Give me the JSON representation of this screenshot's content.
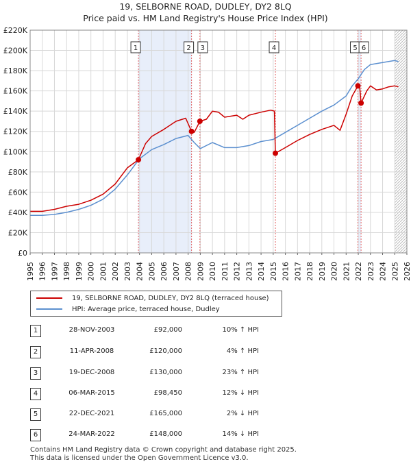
{
  "header": {
    "line1": "19, SELBORNE ROAD, DUDLEY, DY2 8LQ",
    "line2": "Price paid vs. HM Land Registry's House Price Index (HPI)"
  },
  "legend": {
    "property": "19, SELBORNE ROAD, DUDLEY, DY2 8LQ (terraced house)",
    "hpi": "HPI: Average price, terraced house, Dudley"
  },
  "colors": {
    "property": "#cc0000",
    "hpi": "#5b8fcf",
    "shade": "#e8eefa",
    "grid": "#d8d8d8",
    "vline": "#e06060"
  },
  "transactions": [
    {
      "num": "1",
      "date": "28-NOV-2003",
      "price": "£92,000",
      "hpi": "10% ↑ HPI"
    },
    {
      "num": "2",
      "date": "11-APR-2008",
      "price": "£120,000",
      "hpi": "4% ↑ HPI"
    },
    {
      "num": "3",
      "date": "19-DEC-2008",
      "price": "£130,000",
      "hpi": "23% ↑ HPI"
    },
    {
      "num": "4",
      "date": "06-MAR-2015",
      "price": "£98,450",
      "hpi": "12% ↓ HPI"
    },
    {
      "num": "5",
      "date": "22-DEC-2021",
      "price": "£165,000",
      "hpi": "2% ↓ HPI"
    },
    {
      "num": "6",
      "date": "24-MAR-2022",
      "price": "£148,000",
      "hpi": "14% ↓ HPI"
    }
  ],
  "footer": {
    "line1": "Contains HM Land Registry data © Crown copyright and database right 2025.",
    "line2": "This data is licensed under the Open Government Licence v3.0."
  },
  "chart_data": {
    "type": "line",
    "title": "19, SELBORNE ROAD, DUDLEY, DY2 8LQ — Price paid vs. HM Land Registry's House Price Index (HPI)",
    "xlim": [
      1995,
      2026
    ],
    "ylim": [
      0,
      220000
    ],
    "x_ticks": [
      "1995",
      "1996",
      "1997",
      "1998",
      "1999",
      "2000",
      "2001",
      "2002",
      "2003",
      "2004",
      "2005",
      "2006",
      "2007",
      "2008",
      "2009",
      "2010",
      "2011",
      "2012",
      "2013",
      "2014",
      "2015",
      "2016",
      "2017",
      "2018",
      "2019",
      "2020",
      "2021",
      "2022",
      "2023",
      "2024",
      "2025",
      "2026"
    ],
    "y_ticks": [
      {
        "value": 0,
        "label": "£0"
      },
      {
        "value": 20000,
        "label": "£20K"
      },
      {
        "value": 40000,
        "label": "£40K"
      },
      {
        "value": 60000,
        "label": "£60K"
      },
      {
        "value": 80000,
        "label": "£80K"
      },
      {
        "value": 100000,
        "label": "£100K"
      },
      {
        "value": 120000,
        "label": "£120K"
      },
      {
        "value": 140000,
        "label": "£140K"
      },
      {
        "value": 160000,
        "label": "£160K"
      },
      {
        "value": 180000,
        "label": "£180K"
      },
      {
        "value": 200000,
        "label": "£200K"
      },
      {
        "value": 220000,
        "label": "£220K"
      }
    ],
    "shaded_ranges": [
      [
        2003.91,
        2008.28
      ],
      [
        2021.97,
        2022.23
      ]
    ],
    "hatched_from": 2025.0,
    "sales": [
      {
        "label": "1",
        "x": 2003.91,
        "y": 92000
      },
      {
        "label": "2",
        "x": 2008.28,
        "y": 120000
      },
      {
        "label": "3",
        "x": 2008.97,
        "y": 130000
      },
      {
        "label": "4",
        "x": 2015.18,
        "y": 98450
      },
      {
        "label": "5",
        "x": 2021.97,
        "y": 165000
      },
      {
        "label": "6",
        "x": 2022.23,
        "y": 148000
      }
    ],
    "series": [
      {
        "name": "19, SELBORNE ROAD, DUDLEY, DY2 8LQ (terraced house)",
        "x": [
          1995,
          1996,
          1997,
          1998,
          1999,
          2000,
          2001,
          2002,
          2003,
          2003.91,
          2004.5,
          2005,
          2006,
          2007,
          2007.8,
          2008.28,
          2008.5,
          2008.97,
          2009.5,
          2010,
          2010.5,
          2011,
          2012,
          2012.5,
          2013,
          2014,
          2014.8,
          2015.1,
          2015.18,
          2016,
          2017,
          2018,
          2019,
          2020,
          2020.5,
          2021,
          2021.5,
          2021.97,
          2022.1,
          2022.23,
          2022.7,
          2023,
          2023.5,
          2024,
          2024.5,
          2025,
          2025.3
        ],
        "values": [
          41000,
          41000,
          43000,
          46000,
          48000,
          52000,
          58000,
          68000,
          84000,
          92000,
          108000,
          115000,
          122000,
          130000,
          133000,
          120000,
          119000,
          130000,
          132000,
          140000,
          139000,
          134000,
          136000,
          132000,
          136000,
          139000,
          141000,
          140000,
          98450,
          104000,
          111000,
          117000,
          122000,
          126000,
          121000,
          137000,
          155000,
          165000,
          166000,
          148000,
          160000,
          165000,
          161000,
          162000,
          164000,
          165000,
          164000
        ]
      },
      {
        "name": "HPI: Average price, terraced house, Dudley",
        "x": [
          1995,
          1996,
          1997,
          1998,
          1999,
          2000,
          2001,
          2002,
          2003,
          2004,
          2005,
          2006,
          2007,
          2008,
          2008.5,
          2009,
          2010,
          2011,
          2012,
          2013,
          2014,
          2015,
          2016,
          2017,
          2018,
          2019,
          2020,
          2021,
          2021.5,
          2022,
          2022.5,
          2023,
          2024,
          2025,
          2025.3
        ],
        "values": [
          37000,
          37000,
          38000,
          40000,
          43000,
          47000,
          53000,
          63000,
          77000,
          93000,
          102000,
          107000,
          113000,
          116000,
          109000,
          103000,
          109000,
          104000,
          104000,
          106000,
          110000,
          112000,
          119000,
          126000,
          133000,
          140000,
          146000,
          155000,
          165000,
          172000,
          181000,
          186000,
          188000,
          190000,
          189000
        ]
      }
    ]
  }
}
